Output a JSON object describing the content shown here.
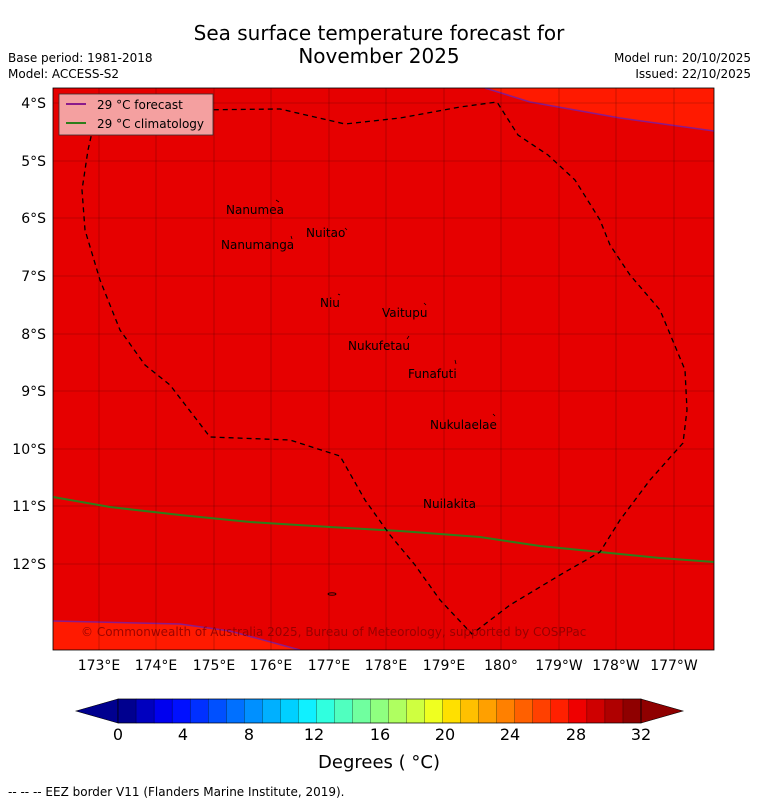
{
  "header": {
    "title_line1": "Sea surface temperature forecast for",
    "title_line2": "November 2025",
    "base_period": "Base period: 1981-2018",
    "model": "Model: ACCESS-S2",
    "model_run": "Model run: 20/10/2025",
    "issued": "Issued: 22/10/2025"
  },
  "map": {
    "background_color": "#e60000",
    "warm_patch_color": "#ff1a00",
    "forecast_line_color": "#8b1a8b",
    "climatology_line_color": "#2e7d1a",
    "eez_line_color": "#000000",
    "lat_labels": [
      "4°S",
      "5°S",
      "6°S",
      "7°S",
      "8°S",
      "9°S",
      "10°S",
      "11°S",
      "12°S"
    ],
    "lon_labels": [
      "173°E",
      "174°E",
      "175°E",
      "176°E",
      "177°E",
      "178°E",
      "179°E",
      "180°",
      "179°W",
      "178°W",
      "177°W"
    ],
    "islands": [
      "Nanumea",
      "Nuitao",
      "Nanumanga",
      "Niu",
      "Vaitupu",
      "Nukufetau",
      "Funafuti",
      "Nukulaelae",
      "Nuilakita"
    ],
    "legend": {
      "forecast": "29 °C  forecast",
      "climatology": "29 °C  climatology"
    },
    "copyright": "© Commonwealth of Australia 2025, Bureau of Meteorology, supported by COSPPac"
  },
  "colorbar": {
    "ticks": [
      "0",
      "4",
      "8",
      "12",
      "16",
      "20",
      "24",
      "28",
      "32"
    ],
    "label": "Degrees ( °C)",
    "colors": [
      "#00008f",
      "#0000bf",
      "#0000ef",
      "#0010ff",
      "#0030ff",
      "#0050ff",
      "#0070ff",
      "#0090ff",
      "#00b0ff",
      "#00d0ff",
      "#10f0ff",
      "#30ffdf",
      "#50ffbf",
      "#70ff9f",
      "#8fff80",
      "#afff60",
      "#cfff40",
      "#efff20",
      "#ffe000",
      "#ffc000",
      "#ffa000",
      "#ff8000",
      "#ff6000",
      "#ff4000",
      "#ff2000",
      "#ef0000",
      "#cf0000",
      "#af0000",
      "#8f0000"
    ]
  },
  "footer": {
    "eez_note": "--  --  -- EEZ border V11 (Flanders Marine Institute, 2019)."
  }
}
